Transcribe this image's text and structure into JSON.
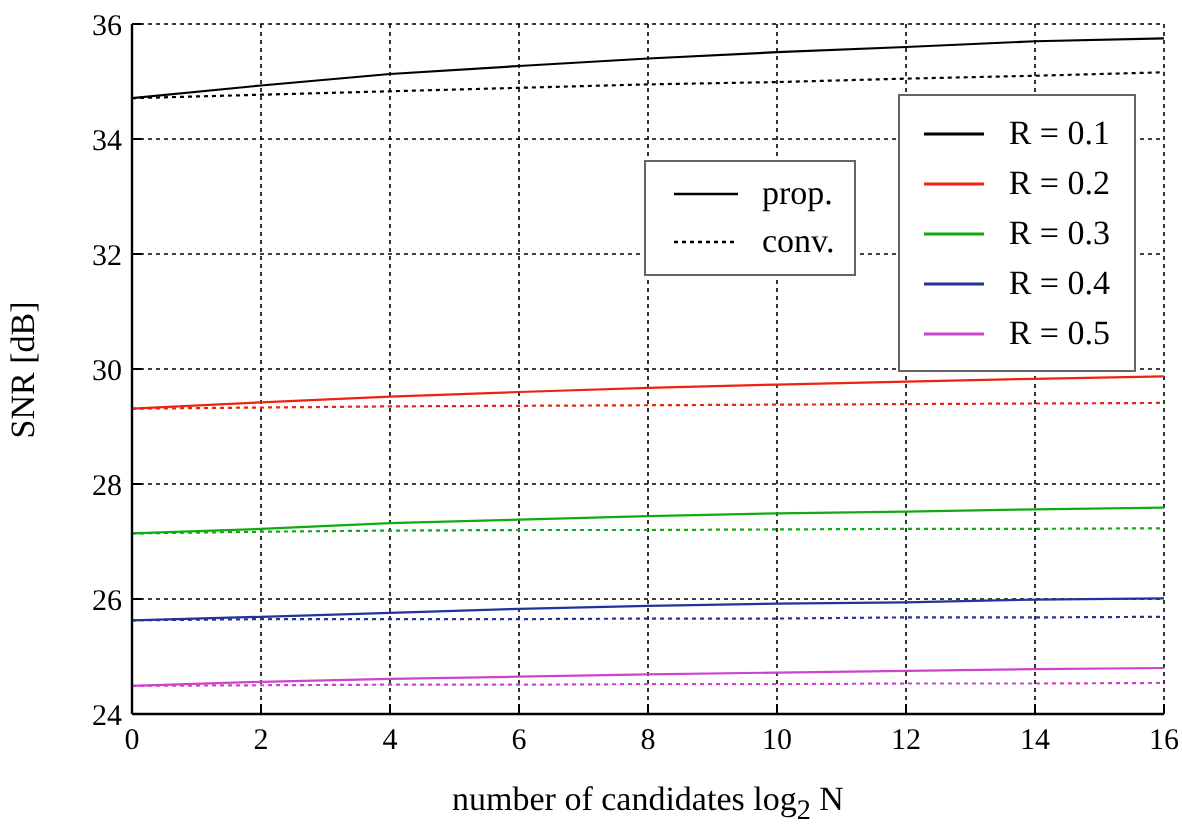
{
  "chart_data": {
    "type": "line",
    "xlabel": "number of candidates log$_{2}$ N",
    "ylabel": "SNR [dB]",
    "x": [
      0,
      2,
      4,
      6,
      8,
      10,
      12,
      14,
      16
    ],
    "xlim": [
      0,
      16
    ],
    "xticks": [
      0,
      2,
      4,
      6,
      8,
      10,
      12,
      14,
      16
    ],
    "ylim": [
      24,
      36
    ],
    "yticks": [
      24,
      26,
      28,
      30,
      32,
      34,
      36
    ],
    "grid": true,
    "legend": "top right",
    "annotations": [
      "prop.",
      "conv."
    ],
    "series": [
      {
        "name": "R = 0.1",
        "color": "#000000",
        "line_style": "solid",
        "values": [
          34.71,
          34.93,
          35.13,
          35.27,
          35.4,
          35.51,
          35.6,
          35.7,
          35.75
        ]
      },
      {
        "name": "R = 0.2",
        "color": "#ee2211",
        "line_style": "solid",
        "values": [
          29.31,
          29.42,
          29.52,
          29.6,
          29.67,
          29.73,
          29.78,
          29.83,
          29.87
        ]
      },
      {
        "name": "R = 0.3",
        "color": "#11aa11",
        "line_style": "solid",
        "values": [
          27.14,
          27.22,
          27.32,
          27.38,
          27.44,
          27.49,
          27.52,
          27.56,
          27.59
        ]
      },
      {
        "name": "R = 0.4",
        "color": "#223399",
        "line_style": "solid",
        "values": [
          25.63,
          25.69,
          25.76,
          25.83,
          25.88,
          25.92,
          25.94,
          25.99,
          26.01
        ]
      },
      {
        "name": "R = 0.5",
        "color": "#cc44cc",
        "line_style": "solid",
        "values": [
          24.49,
          24.56,
          24.61,
          24.65,
          24.69,
          24.72,
          24.75,
          24.78,
          24.8
        ]
      },
      {
        "color": "#000000",
        "line_style": "dotted",
        "values": [
          34.71,
          34.77,
          34.83,
          34.89,
          34.95,
          34.99,
          35.05,
          35.1,
          35.16
        ]
      },
      {
        "color": "#ee2211",
        "line_style": "dotted",
        "values": [
          29.31,
          29.33,
          29.35,
          29.36,
          29.37,
          29.38,
          29.39,
          29.4,
          29.41
        ]
      },
      {
        "color": "#11aa11",
        "line_style": "dotted",
        "values": [
          27.14,
          27.17,
          27.19,
          27.2,
          27.2,
          27.21,
          27.22,
          27.22,
          27.23
        ]
      },
      {
        "color": "#223399",
        "line_style": "dotted",
        "values": [
          25.63,
          25.65,
          25.65,
          25.65,
          25.66,
          25.66,
          25.68,
          25.68,
          25.69
        ]
      },
      {
        "color": "#cc44cc",
        "line_style": "dotted",
        "values": [
          24.49,
          24.5,
          24.51,
          24.51,
          24.52,
          24.52,
          24.53,
          24.53,
          24.54
        ]
      }
    ]
  }
}
